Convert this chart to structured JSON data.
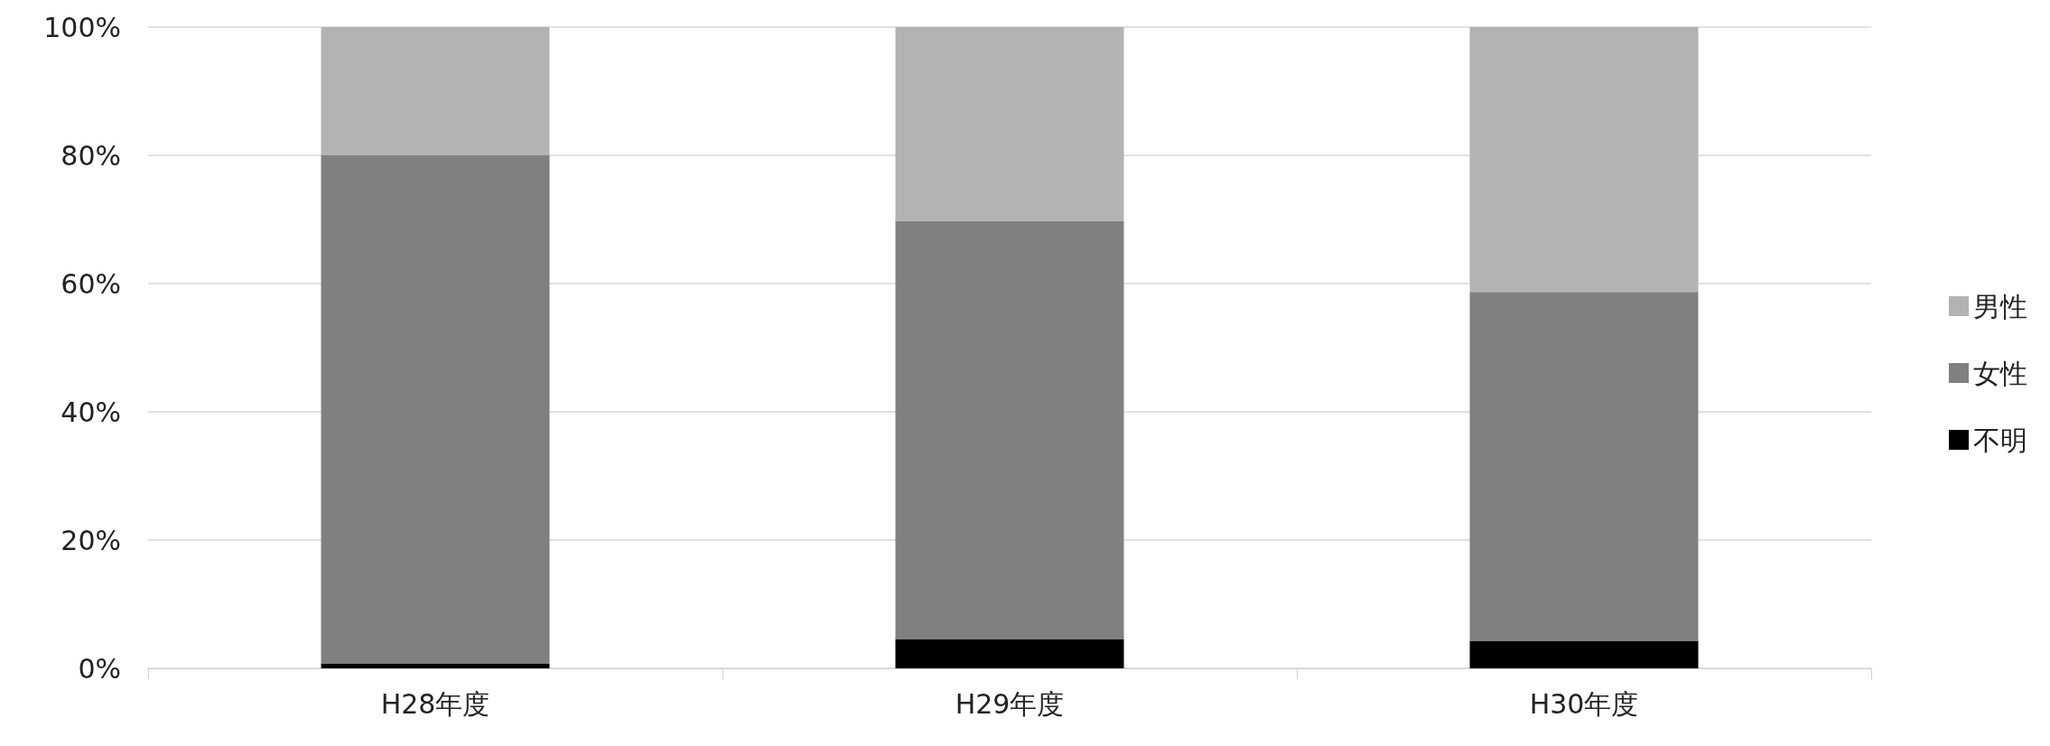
{
  "chart_data": {
    "type": "bar",
    "stacked": true,
    "categories": [
      "H28年度",
      "H29年度",
      "H30年度"
    ],
    "series": [
      {
        "name": "不明",
        "color": "#000000",
        "values": [
          0.7,
          4.5,
          4.3
        ]
      },
      {
        "name": "女性",
        "color": "#808080",
        "values": [
          79.3,
          65.3,
          54.4
        ]
      },
      {
        "name": "男性",
        "color": "#b3b3b3",
        "values": [
          20,
          30.2,
          41.3
        ]
      }
    ],
    "ylim": [
      0,
      100
    ],
    "yticks": [
      {
        "value": 0,
        "label": "0%"
      },
      {
        "value": 20,
        "label": "20%"
      },
      {
        "value": 40,
        "label": "40%"
      },
      {
        "value": 60,
        "label": "60%"
      },
      {
        "value": 80,
        "label": "80%"
      },
      {
        "value": 100,
        "label": "100%"
      }
    ],
    "grid": "y",
    "legend": "right"
  }
}
